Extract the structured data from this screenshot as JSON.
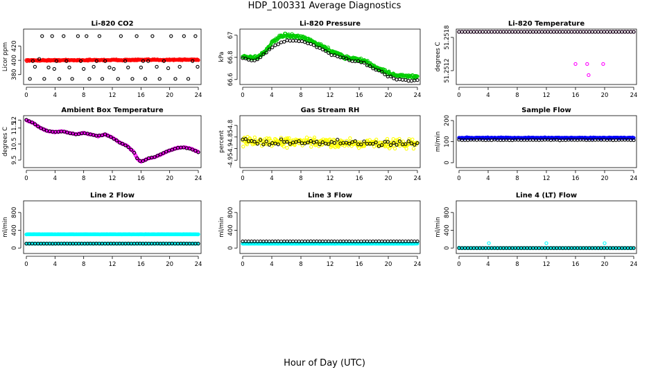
{
  "page": {
    "title": "HDP_100331  Average Diagnostics",
    "xlabel": "Hour of Day (UTC)"
  },
  "colors": {
    "black": "#000000",
    "red": "#ff0000",
    "green": "#00cc00",
    "magenta": "#ff00ff",
    "yellow": "#ffff00",
    "blue": "#0000ff",
    "cyan": "#00ffff"
  },
  "chart_data": [
    {
      "name": "co2",
      "type": "scatter",
      "title": "Li-820 CO2",
      "ylabel": "Licor ppm",
      "xlim": [
        0,
        24
      ],
      "ylim": [
        370,
        440
      ],
      "xticks": [
        0,
        4,
        8,
        12,
        16,
        20,
        24
      ],
      "yticks": [
        380,
        400,
        420
      ],
      "series": [
        {
          "name": "red",
          "color": "red",
          "gen": "line",
          "y0": 400,
          "y1": 401,
          "n": 280,
          "noise": 1.2
        },
        {
          "name": "black",
          "color": "black",
          "points": [
            [
              0.5,
              374
            ],
            [
              1.2,
              391
            ],
            [
              1.8,
              402
            ],
            [
              2.2,
              434
            ],
            [
              2.5,
              374
            ],
            [
              3.1,
              390
            ],
            [
              3.6,
              434
            ],
            [
              3.9,
              388
            ],
            [
              4.2,
              399
            ],
            [
              4.6,
              374
            ],
            [
              5.2,
              434
            ],
            [
              6.0,
              390
            ],
            [
              6.4,
              374
            ],
            [
              7.2,
              434
            ],
            [
              7.6,
              399
            ],
            [
              8.0,
              388
            ],
            [
              8.4,
              434
            ],
            [
              8.8,
              374
            ],
            [
              9.4,
              391
            ],
            [
              10.2,
              434
            ],
            [
              10.6,
              374
            ],
            [
              11.0,
              399
            ],
            [
              11.6,
              390
            ],
            [
              12.2,
              388
            ],
            [
              12.8,
              374
            ],
            [
              13.2,
              434
            ],
            [
              13.8,
              399
            ],
            [
              14.2,
              390
            ],
            [
              14.8,
              374
            ],
            [
              15.4,
              434
            ],
            [
              16.0,
              390
            ],
            [
              16.6,
              374
            ],
            [
              17.0,
              399
            ],
            [
              17.6,
              434
            ],
            [
              18.2,
              391
            ],
            [
              18.6,
              374
            ],
            [
              19.2,
              399
            ],
            [
              19.8,
              389
            ],
            [
              20.2,
              434
            ],
            [
              20.8,
              374
            ],
            [
              21.4,
              391
            ],
            [
              22.0,
              434
            ],
            [
              22.6,
              374
            ],
            [
              23.2,
              399
            ],
            [
              23.6,
              434
            ],
            [
              23.9,
              391
            ],
            [
              0.9,
              399
            ],
            [
              5.6,
              399
            ],
            [
              9.8,
              399
            ],
            [
              16.3,
              399
            ]
          ]
        }
      ]
    },
    {
      "name": "pressure",
      "type": "scatter",
      "title": "Li-820 Pressure",
      "ylabel": "kPa",
      "xlim": [
        0,
        24
      ],
      "ylim": [
        66.58,
        67.03
      ],
      "xticks": [
        0,
        4,
        8,
        12,
        16,
        20,
        24
      ],
      "yticks": [
        66.6,
        66.8,
        67.0
      ],
      "series": [
        {
          "name": "green",
          "color": "green",
          "gen": "curve",
          "n": 320,
          "noise": 0.022,
          "knots": [
            [
              0,
              66.81
            ],
            [
              1,
              66.8
            ],
            [
              2,
              66.8
            ],
            [
              3,
              66.85
            ],
            [
              4,
              66.93
            ],
            [
              5,
              66.98
            ],
            [
              6,
              67.0
            ],
            [
              7,
              66.99
            ],
            [
              8,
              66.98
            ],
            [
              9,
              66.96
            ],
            [
              10,
              66.93
            ],
            [
              11,
              66.9
            ],
            [
              12,
              66.86
            ],
            [
              13,
              66.84
            ],
            [
              14,
              66.8
            ],
            [
              15,
              66.79
            ],
            [
              16,
              66.78
            ],
            [
              17,
              66.76
            ],
            [
              18,
              66.72
            ],
            [
              19,
              66.69
            ],
            [
              20,
              66.66
            ],
            [
              21,
              66.64
            ],
            [
              22,
              66.63
            ],
            [
              23,
              66.63
            ],
            [
              24,
              66.62
            ]
          ]
        },
        {
          "name": "black",
          "color": "black",
          "gen": "curve",
          "n": 60,
          "noise": 0.01,
          "knots": [
            [
              0,
              66.79
            ],
            [
              1,
              66.77
            ],
            [
              2,
              66.78
            ],
            [
              3,
              66.83
            ],
            [
              4,
              66.89
            ],
            [
              5,
              66.93
            ],
            [
              6,
              66.95
            ],
            [
              7,
              66.95
            ],
            [
              8,
              66.95
            ],
            [
              9,
              66.93
            ],
            [
              10,
              66.9
            ],
            [
              11,
              66.87
            ],
            [
              12,
              66.83
            ],
            [
              13,
              66.81
            ],
            [
              14,
              66.79
            ],
            [
              15,
              66.77
            ],
            [
              16,
              66.76
            ],
            [
              17,
              66.74
            ],
            [
              18,
              66.7
            ],
            [
              19,
              66.67
            ],
            [
              20,
              66.63
            ],
            [
              21,
              66.6
            ],
            [
              22,
              66.6
            ],
            [
              23,
              66.59
            ],
            [
              24,
              66.59
            ]
          ]
        }
      ]
    },
    {
      "name": "temperature",
      "type": "scatter",
      "title": "Li-820 Temperature",
      "ylabel": "degrees C",
      "xlim": [
        0,
        24
      ],
      "ylim": [
        51.251,
        51.2519
      ],
      "xticks": [
        0,
        4,
        8,
        12,
        16,
        20,
        24
      ],
      "yticks": [
        51.2512,
        51.2518
      ],
      "series": [
        {
          "name": "magenta",
          "color": "magenta",
          "gen": "line",
          "y0": 51.2519,
          "y1": 51.2519,
          "n": 60,
          "noise": 0,
          "extra": [
            [
              16,
              51.25132
            ],
            [
              17.6,
              51.25132
            ],
            [
              19.8,
              51.25132
            ],
            [
              17.8,
              51.25112
            ]
          ]
        },
        {
          "name": "black",
          "color": "black",
          "gen": "line",
          "y0": 51.2519,
          "y1": 51.2519,
          "n": 60,
          "noise": 0
        }
      ]
    },
    {
      "name": "boxtemp",
      "type": "scatter",
      "title": "Ambient Box Temperature",
      "ylabel": "degrees C",
      "xlim": [
        0,
        24
      ],
      "ylim": [
        9.2,
        12.1
      ],
      "xticks": [
        0,
        4,
        8,
        12,
        16,
        20,
        24
      ],
      "yticks": [
        9.5,
        10.5,
        11.5,
        12.0
      ],
      "series": [
        {
          "name": "magenta",
          "color": "magenta",
          "gen": "curve",
          "n": 260,
          "noise": 0.04,
          "knots": [
            [
              0,
              12.0
            ],
            [
              1,
              11.8
            ],
            [
              2,
              11.5
            ],
            [
              3,
              11.3
            ],
            [
              4,
              11.25
            ],
            [
              5,
              11.3
            ],
            [
              6,
              11.2
            ],
            [
              7,
              11.1
            ],
            [
              8,
              11.2
            ],
            [
              9,
              11.1
            ],
            [
              10,
              11.0
            ],
            [
              11,
              11.1
            ],
            [
              12,
              10.9
            ],
            [
              13,
              10.6
            ],
            [
              14,
              10.4
            ],
            [
              15,
              10.0
            ],
            [
              15.5,
              9.55
            ],
            [
              16,
              9.4
            ],
            [
              16.5,
              9.5
            ],
            [
              17,
              9.6
            ],
            [
              18,
              9.7
            ],
            [
              19,
              9.9
            ],
            [
              20,
              10.1
            ],
            [
              21,
              10.25
            ],
            [
              22,
              10.3
            ],
            [
              23,
              10.2
            ],
            [
              24,
              10.0
            ]
          ]
        },
        {
          "name": "black",
          "color": "black",
          "gen": "curve",
          "n": 60,
          "noise": 0.03,
          "knots": [
            [
              0,
              12.0
            ],
            [
              1,
              11.8
            ],
            [
              2,
              11.5
            ],
            [
              3,
              11.3
            ],
            [
              4,
              11.25
            ],
            [
              5,
              11.3
            ],
            [
              6,
              11.2
            ],
            [
              7,
              11.1
            ],
            [
              8,
              11.2
            ],
            [
              9,
              11.1
            ],
            [
              10,
              11.0
            ],
            [
              11,
              11.1
            ],
            [
              12,
              10.9
            ],
            [
              13,
              10.6
            ],
            [
              14,
              10.4
            ],
            [
              15,
              10.0
            ],
            [
              15.5,
              9.55
            ],
            [
              16,
              9.4
            ],
            [
              16.5,
              9.5
            ],
            [
              17,
              9.6
            ],
            [
              18,
              9.7
            ],
            [
              19,
              9.9
            ],
            [
              20,
              10.1
            ],
            [
              21,
              10.25
            ],
            [
              22,
              10.3
            ],
            [
              23,
              10.2
            ],
            [
              24,
              10.0
            ]
          ]
        }
      ]
    },
    {
      "name": "rh",
      "type": "scatter",
      "title": "Gas Stream RH",
      "ylabel": "percent",
      "xlim": [
        0,
        24
      ],
      "ylim": [
        -4.97,
        -4.77
      ],
      "xticks": [
        0,
        4,
        8,
        12,
        16,
        20,
        24
      ],
      "yticks": [
        -4.95,
        -4.9,
        -4.85,
        -4.8
      ],
      "series": [
        {
          "name": "yellow",
          "color": "yellow",
          "gen": "line",
          "y0": -4.87,
          "y1": -4.88,
          "n": 320,
          "noise": 0.028
        },
        {
          "name": "black",
          "color": "black",
          "gen": "line",
          "y0": -4.87,
          "y1": -4.88,
          "n": 60,
          "noise": 0.02
        }
      ]
    },
    {
      "name": "sampleflow",
      "type": "scatter",
      "title": "Sample Flow",
      "ylabel": "ml/min",
      "xlim": [
        0,
        24
      ],
      "ylim": [
        -10,
        210
      ],
      "xticks": [
        0,
        4,
        8,
        12,
        16,
        20,
        24
      ],
      "yticks": [
        0,
        100,
        200
      ],
      "series": [
        {
          "name": "blue",
          "color": "blue",
          "gen": "line",
          "y0": 118,
          "y1": 118,
          "n": 300,
          "noise": 3
        },
        {
          "name": "black",
          "color": "black",
          "gen": "line",
          "y0": 108,
          "y1": 108,
          "n": 60,
          "noise": 2
        }
      ]
    },
    {
      "name": "line2",
      "type": "scatter",
      "title": "Line 2 Flow",
      "ylabel": "ml/min",
      "xlim": [
        0,
        24
      ],
      "ylim": [
        -60,
        1000
      ],
      "xticks": [
        0,
        4,
        8,
        12,
        16,
        20,
        24
      ],
      "yticks": [
        0,
        400,
        800
      ],
      "series": [
        {
          "name": "cyan",
          "color": "cyan",
          "gen": "line",
          "y0": 310,
          "y1": 310,
          "n": 300,
          "noise": 4
        },
        {
          "name": "cyan-low",
          "color": "cyan",
          "gen": "line",
          "y0": 100,
          "y1": 100,
          "n": 200,
          "noise": 3
        },
        {
          "name": "black",
          "color": "black",
          "gen": "line",
          "y0": 100,
          "y1": 100,
          "n": 60,
          "noise": 2
        }
      ]
    },
    {
      "name": "line3",
      "type": "scatter",
      "title": "Line 3 Flow",
      "ylabel": "ml/min",
      "xlim": [
        0,
        24
      ],
      "ylim": [
        -60,
        1000
      ],
      "xticks": [
        0,
        4,
        8,
        12,
        16,
        20,
        24
      ],
      "yticks": [
        0,
        400,
        800
      ],
      "series": [
        {
          "name": "cyan",
          "color": "cyan",
          "gen": "line",
          "y0": 100,
          "y1": 100,
          "n": 300,
          "noise": 4
        },
        {
          "name": "black",
          "color": "black",
          "gen": "line",
          "y0": 150,
          "y1": 150,
          "n": 60,
          "noise": 2
        }
      ]
    },
    {
      "name": "line4",
      "type": "scatter",
      "title": "Line 4 (LT) Flow",
      "ylabel": "ml/min",
      "xlim": [
        0,
        24
      ],
      "ylim": [
        -60,
        1000
      ],
      "xticks": [
        0,
        4,
        8,
        12,
        16,
        20,
        24
      ],
      "yticks": [
        0,
        400,
        800
      ],
      "series": [
        {
          "name": "cyan",
          "color": "cyan",
          "gen": "line",
          "y0": 0,
          "y1": 0,
          "n": 200,
          "noise": 1,
          "extra": [
            [
              4.1,
              110
            ],
            [
              12.0,
              110
            ],
            [
              20.0,
              110
            ],
            [
              0,
              10
            ]
          ]
        },
        {
          "name": "black",
          "color": "black",
          "gen": "line",
          "y0": 0,
          "y1": 0,
          "n": 60,
          "noise": 1
        }
      ]
    }
  ]
}
